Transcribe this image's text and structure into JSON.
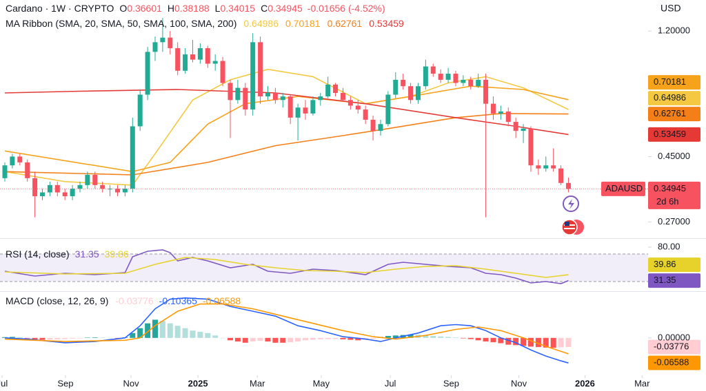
{
  "chart_data": [
    {
      "type": "candlestick",
      "title": "Cardano · 1W · CRYPTO",
      "ohlc_labels": [
        "O",
        "H",
        "L",
        "C"
      ],
      "change": "-0.01656 (-4.52%)",
      "currency": "USD",
      "indicator": "MA Ribbon (SMA, 20, SMA, 50, SMA, 100, SMA, 200)",
      "symbol": "ADAUSD",
      "countdown": "2d 6h",
      "up_color": "#22ab94",
      "down_color": "#f7525f",
      "log_scale": true,
      "grid": false,
      "ylim": [
        0.239,
        1.53
      ],
      "yticks": [
        {
          "value": 1.2,
          "label": "1.20000"
        },
        {
          "value": 0.45,
          "label": "0.45000"
        },
        {
          "value": 0.27,
          "label": "0.27000"
        }
      ],
      "xlim": [
        -0.642,
        85.6
      ],
      "xticks": [
        {
          "value": -0.37,
          "label": "Jul"
        },
        {
          "value": 8.07,
          "label": "Sep"
        },
        {
          "value": 16.8,
          "label": "Nov"
        },
        {
          "value": 25.7,
          "label": "2025"
        },
        {
          "value": 33.6,
          "label": "Mar"
        },
        {
          "value": 42.1,
          "label": "May"
        },
        {
          "value": 51.3,
          "label": "Jul"
        },
        {
          "value": 59.4,
          "label": "Sep"
        },
        {
          "value": 68.4,
          "label": "Nov"
        },
        {
          "value": 77.2,
          "label": "2026"
        },
        {
          "value": 84.8,
          "label": "Mar"
        }
      ],
      "candles": [
        {
          "o": 0.38,
          "h": 0.43,
          "l": 0.37,
          "c": 0.42
        },
        {
          "o": 0.42,
          "h": 0.46,
          "l": 0.41,
          "c": 0.45
        },
        {
          "o": 0.45,
          "h": 0.46,
          "l": 0.42,
          "c": 0.43
        },
        {
          "o": 0.43,
          "h": 0.44,
          "l": 0.37,
          "c": 0.38
        },
        {
          "o": 0.38,
          "h": 0.4,
          "l": 0.28,
          "c": 0.33
        },
        {
          "o": 0.33,
          "h": 0.35,
          "l": 0.32,
          "c": 0.34
        },
        {
          "o": 0.34,
          "h": 0.37,
          "l": 0.33,
          "c": 0.36
        },
        {
          "o": 0.36,
          "h": 0.37,
          "l": 0.33,
          "c": 0.34
        },
        {
          "o": 0.34,
          "h": 0.35,
          "l": 0.32,
          "c": 0.33
        },
        {
          "o": 0.33,
          "h": 0.36,
          "l": 0.32,
          "c": 0.35
        },
        {
          "o": 0.35,
          "h": 0.37,
          "l": 0.34,
          "c": 0.36
        },
        {
          "o": 0.36,
          "h": 0.4,
          "l": 0.35,
          "c": 0.39
        },
        {
          "o": 0.39,
          "h": 0.4,
          "l": 0.35,
          "c": 0.36
        },
        {
          "o": 0.36,
          "h": 0.37,
          "l": 0.34,
          "c": 0.35
        },
        {
          "o": 0.35,
          "h": 0.36,
          "l": 0.33,
          "c": 0.35
        },
        {
          "o": 0.35,
          "h": 0.36,
          "l": 0.33,
          "c": 0.34
        },
        {
          "o": 0.34,
          "h": 0.36,
          "l": 0.33,
          "c": 0.35
        },
        {
          "o": 0.35,
          "h": 0.61,
          "l": 0.34,
          "c": 0.57
        },
        {
          "o": 0.57,
          "h": 0.76,
          "l": 0.55,
          "c": 0.73
        },
        {
          "o": 0.73,
          "h": 1.06,
          "l": 0.7,
          "c": 1.02
        },
        {
          "o": 1.02,
          "h": 1.15,
          "l": 0.95,
          "c": 1.1
        },
        {
          "o": 1.1,
          "h": 1.33,
          "l": 1.02,
          "c": 1.14
        },
        {
          "o": 1.14,
          "h": 1.2,
          "l": 1.0,
          "c": 1.05
        },
        {
          "o": 1.05,
          "h": 1.1,
          "l": 0.85,
          "c": 0.88
        },
        {
          "o": 0.88,
          "h": 1.05,
          "l": 0.86,
          "c": 1.0
        },
        {
          "o": 1.0,
          "h": 1.12,
          "l": 0.94,
          "c": 0.96
        },
        {
          "o": 0.96,
          "h": 1.09,
          "l": 0.93,
          "c": 1.05
        },
        {
          "o": 1.05,
          "h": 1.07,
          "l": 0.9,
          "c": 0.93
        },
        {
          "o": 0.93,
          "h": 1.0,
          "l": 0.88,
          "c": 0.95
        },
        {
          "o": 0.95,
          "h": 0.98,
          "l": 0.78,
          "c": 0.8
        },
        {
          "o": 0.8,
          "h": 0.82,
          "l": 0.52,
          "c": 0.7
        },
        {
          "o": 0.7,
          "h": 0.82,
          "l": 0.68,
          "c": 0.77
        },
        {
          "o": 0.77,
          "h": 0.8,
          "l": 0.62,
          "c": 0.65
        },
        {
          "o": 0.65,
          "h": 1.18,
          "l": 0.62,
          "c": 1.1
        },
        {
          "o": 1.1,
          "h": 1.15,
          "l": 0.68,
          "c": 0.72
        },
        {
          "o": 0.72,
          "h": 0.78,
          "l": 0.7,
          "c": 0.74
        },
        {
          "o": 0.74,
          "h": 0.77,
          "l": 0.68,
          "c": 0.7
        },
        {
          "o": 0.7,
          "h": 0.74,
          "l": 0.66,
          "c": 0.72
        },
        {
          "o": 0.72,
          "h": 0.73,
          "l": 0.58,
          "c": 0.61
        },
        {
          "o": 0.61,
          "h": 0.68,
          "l": 0.51,
          "c": 0.66
        },
        {
          "o": 0.66,
          "h": 0.7,
          "l": 0.6,
          "c": 0.63
        },
        {
          "o": 0.63,
          "h": 0.72,
          "l": 0.62,
          "c": 0.7
        },
        {
          "o": 0.7,
          "h": 0.74,
          "l": 0.67,
          "c": 0.72
        },
        {
          "o": 0.72,
          "h": 0.84,
          "l": 0.71,
          "c": 0.79
        },
        {
          "o": 0.79,
          "h": 0.8,
          "l": 0.72,
          "c": 0.74
        },
        {
          "o": 0.74,
          "h": 0.77,
          "l": 0.69,
          "c": 0.7
        },
        {
          "o": 0.7,
          "h": 0.72,
          "l": 0.65,
          "c": 0.67
        },
        {
          "o": 0.67,
          "h": 0.7,
          "l": 0.63,
          "c": 0.65
        },
        {
          "o": 0.65,
          "h": 0.67,
          "l": 0.58,
          "c": 0.6
        },
        {
          "o": 0.6,
          "h": 0.62,
          "l": 0.51,
          "c": 0.55
        },
        {
          "o": 0.55,
          "h": 0.6,
          "l": 0.53,
          "c": 0.58
        },
        {
          "o": 0.58,
          "h": 0.75,
          "l": 0.57,
          "c": 0.73
        },
        {
          "o": 0.73,
          "h": 0.87,
          "l": 0.71,
          "c": 0.82
        },
        {
          "o": 0.82,
          "h": 0.86,
          "l": 0.76,
          "c": 0.78
        },
        {
          "o": 0.78,
          "h": 0.8,
          "l": 0.68,
          "c": 0.7
        },
        {
          "o": 0.7,
          "h": 0.8,
          "l": 0.68,
          "c": 0.78
        },
        {
          "o": 0.78,
          "h": 0.96,
          "l": 0.76,
          "c": 0.91
        },
        {
          "o": 0.91,
          "h": 0.93,
          "l": 0.84,
          "c": 0.86
        },
        {
          "o": 0.86,
          "h": 0.89,
          "l": 0.8,
          "c": 0.82
        },
        {
          "o": 0.82,
          "h": 0.9,
          "l": 0.8,
          "c": 0.86
        },
        {
          "o": 0.86,
          "h": 0.88,
          "l": 0.78,
          "c": 0.8
        },
        {
          "o": 0.8,
          "h": 0.85,
          "l": 0.78,
          "c": 0.82
        },
        {
          "o": 0.82,
          "h": 0.84,
          "l": 0.76,
          "c": 0.78
        },
        {
          "o": 0.78,
          "h": 0.86,
          "l": 0.77,
          "c": 0.82
        },
        {
          "o": 0.82,
          "h": 0.86,
          "l": 0.28,
          "c": 0.68
        },
        {
          "o": 0.68,
          "h": 0.72,
          "l": 0.6,
          "c": 0.63
        },
        {
          "o": 0.63,
          "h": 0.67,
          "l": 0.6,
          "c": 0.64
        },
        {
          "o": 0.64,
          "h": 0.66,
          "l": 0.57,
          "c": 0.59
        },
        {
          "o": 0.59,
          "h": 0.61,
          "l": 0.52,
          "c": 0.55
        },
        {
          "o": 0.55,
          "h": 0.58,
          "l": 0.5,
          "c": 0.56
        },
        {
          "o": 0.56,
          "h": 0.57,
          "l": 0.4,
          "c": 0.42
        },
        {
          "o": 0.42,
          "h": 0.44,
          "l": 0.39,
          "c": 0.41
        },
        {
          "o": 0.41,
          "h": 0.45,
          "l": 0.4,
          "c": 0.42
        },
        {
          "o": 0.42,
          "h": 0.48,
          "l": 0.4,
          "c": 0.41
        },
        {
          "o": 0.41,
          "h": 0.42,
          "l": 0.36,
          "c": 0.36601
        },
        {
          "o": 0.36601,
          "h": 0.38188,
          "l": 0.34015,
          "c": 0.34945
        }
      ],
      "series": [
        {
          "color": "#f5c842",
          "x": [
            0,
            8,
            17,
            20,
            25,
            30,
            35,
            41,
            48,
            54,
            59,
            64,
            69,
            75
          ],
          "values": [
            0.4,
            0.37,
            0.36,
            0.46,
            0.7,
            0.82,
            0.89,
            0.84,
            0.68,
            0.72,
            0.8,
            0.84,
            0.77,
            0.64986
          ]
        },
        {
          "color": "#f7a21b",
          "x": [
            0,
            17,
            22,
            27,
            32,
            39,
            48,
            54,
            62,
            69,
            75
          ],
          "values": [
            0.47,
            0.4,
            0.43,
            0.58,
            0.68,
            0.72,
            0.68,
            0.72,
            0.78,
            0.76,
            0.70181
          ]
        },
        {
          "color": "#f57f17",
          "x": [
            0,
            17,
            27,
            36,
            45,
            51,
            60,
            66,
            75
          ],
          "values": [
            0.4,
            0.39,
            0.43,
            0.49,
            0.53,
            0.56,
            0.61,
            0.63,
            0.62761
          ]
        },
        {
          "color": "#e53935",
          "x": [
            0,
            10,
            23,
            36,
            48,
            60,
            68,
            75
          ],
          "values": [
            0.74,
            0.75,
            0.76,
            0.74,
            0.68,
            0.61,
            0.57,
            0.53459
          ]
        }
      ]
    },
    {
      "type": "rsi",
      "title": "RSI (14, close)",
      "ylim": [
        17,
        91
      ],
      "yticks": [
        {
          "value": 80,
          "label": "80.00"
        }
      ],
      "bands": [
        30,
        70
      ],
      "band_color": "#7e57c2",
      "series": [
        {
          "color": "#7e57c2",
          "x": [
            0,
            4,
            8,
            12,
            16,
            17,
            19,
            21,
            22,
            23,
            25,
            27,
            30,
            33,
            35,
            38,
            41,
            44,
            48,
            51,
            53,
            56,
            59,
            62,
            64,
            66,
            68,
            70,
            72,
            74,
            75
          ],
          "values": [
            45,
            38,
            42,
            40,
            43,
            66,
            74,
            76,
            72,
            60,
            65,
            60,
            50,
            55,
            45,
            42,
            48,
            46,
            40,
            55,
            58,
            55,
            52,
            50,
            42,
            40,
            35,
            28,
            30,
            27,
            31.35
          ]
        },
        {
          "color": "#e6d22a",
          "x": [
            0,
            8,
            16,
            20,
            24,
            28,
            32,
            36,
            40,
            44,
            48,
            52,
            56,
            60,
            64,
            68,
            72,
            75
          ],
          "values": [
            44,
            41,
            42,
            55,
            65,
            62,
            55,
            50,
            46,
            45,
            43,
            48,
            52,
            53,
            48,
            42,
            36,
            39.86
          ]
        }
      ]
    },
    {
      "type": "macd",
      "title": "MACD (close, 12, 26, 9)",
      "ylim": [
        -0.154,
        0.19
      ],
      "yticks": [
        {
          "value": 0,
          "label": "0.00000"
        }
      ],
      "histogram_colors": [
        "#26a69a",
        "#b2dfdb",
        "#ff5252",
        "#ffcdd2"
      ],
      "histogram": [
        0.003,
        0.004,
        0.003,
        -0.002,
        -0.006,
        -0.008,
        -0.007,
        -0.006,
        -0.005,
        -0.003,
        -0.002,
        0.001,
        0.002,
        0.001,
        0.0,
        -0.001,
        0.002,
        0.02,
        0.04,
        0.06,
        0.075,
        0.07,
        0.06,
        0.05,
        0.04,
        0.03,
        0.025,
        0.02,
        0.01,
        0.0,
        -0.01,
        -0.015,
        -0.02,
        -0.015,
        -0.012,
        -0.015,
        -0.02,
        -0.02,
        -0.018,
        -0.015,
        -0.01,
        -0.008,
        -0.006,
        -0.005,
        -0.004,
        -0.006,
        -0.008,
        -0.01,
        -0.008,
        -0.004,
        0.004,
        0.008,
        0.01,
        0.012,
        0.014,
        0.013,
        0.01,
        0.008,
        0.006,
        0.004,
        0.002,
        -0.002,
        -0.005,
        -0.01,
        -0.015,
        -0.018,
        -0.022,
        -0.028,
        -0.03,
        -0.033,
        -0.036,
        -0.038,
        -0.04,
        -0.041,
        -0.039,
        -0.03776
      ],
      "series": [
        {
          "color": "#2962ff",
          "x": [
            0,
            3,
            8,
            12,
            16,
            18,
            20,
            22,
            24,
            27,
            30,
            33,
            36,
            39,
            42,
            45,
            48,
            50,
            52,
            55,
            58,
            60,
            62,
            64,
            66,
            68,
            70,
            72,
            74,
            75
          ],
          "values": [
            0.0,
            -0.005,
            -0.02,
            -0.015,
            0.0,
            0.05,
            0.12,
            0.16,
            0.165,
            0.16,
            0.13,
            0.11,
            0.09,
            0.05,
            0.03,
            0.005,
            -0.005,
            -0.015,
            0.0,
            0.02,
            0.05,
            0.055,
            0.05,
            0.03,
            0.0,
            -0.02,
            -0.05,
            -0.075,
            -0.095,
            -0.10365
          ]
        },
        {
          "color": "#ff9800",
          "x": [
            0,
            8,
            16,
            18,
            20,
            23,
            26,
            29,
            33,
            37,
            41,
            45,
            49,
            52,
            56,
            60,
            63,
            66,
            69,
            72,
            75
          ],
          "values": [
            -0.005,
            -0.015,
            -0.01,
            0.0,
            0.05,
            0.11,
            0.14,
            0.14,
            0.12,
            0.09,
            0.06,
            0.03,
            0.005,
            -0.005,
            0.01,
            0.035,
            0.045,
            0.03,
            0.0,
            -0.035,
            -0.06588
          ]
        }
      ]
    }
  ]
}
